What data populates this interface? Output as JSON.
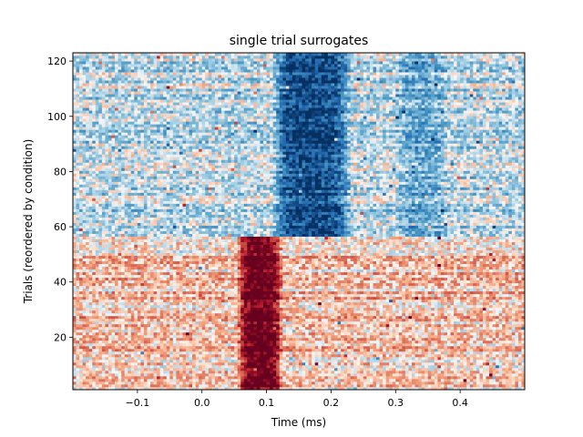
{
  "chart_data": {
    "type": "heatmap",
    "title": "single trial surrogates",
    "xlabel": "Time (ms)",
    "ylabel": "Trials (reordered by condition)",
    "xlim": [
      -0.2,
      0.5
    ],
    "ylim": [
      1,
      123
    ],
    "x_ticks": [
      -0.1,
      0.0,
      0.1,
      0.2,
      0.3,
      0.4
    ],
    "x_tick_labels": [
      "−0.1",
      "0.0",
      "0.1",
      "0.2",
      "0.3",
      "0.4"
    ],
    "y_ticks": [
      20,
      40,
      60,
      80,
      100,
      120
    ],
    "y_tick_labels": [
      "20",
      "40",
      "60",
      "80",
      "100",
      "120"
    ],
    "colormap": "RdBu_r",
    "n_trials": 123,
    "time_step": 0.005,
    "grid": false,
    "colors": {
      "positive": "#67001f",
      "neutral": "#f7f7f7",
      "negative": "#053061"
    },
    "features": [
      {
        "trials": [
          1,
          56
        ],
        "time": [
          0.055,
          0.125
        ],
        "value": 0.9,
        "description": "strong positive response"
      },
      {
        "trials": [
          57,
          123
        ],
        "time": [
          0.11,
          0.23
        ],
        "value": -0.75,
        "description": "negative response"
      },
      {
        "trials": [
          57,
          123
        ],
        "time": [
          0.3,
          0.38
        ],
        "value": -0.25,
        "description": "weak negative response"
      },
      {
        "trials": [
          1,
          56
        ],
        "time": [
          -0.2,
          0.5
        ],
        "value": 0.15,
        "description": "mild positive baseline"
      },
      {
        "trials": [
          57,
          123
        ],
        "time": [
          -0.2,
          0.5
        ],
        "value": -0.15,
        "description": "mild negative baseline"
      }
    ]
  }
}
